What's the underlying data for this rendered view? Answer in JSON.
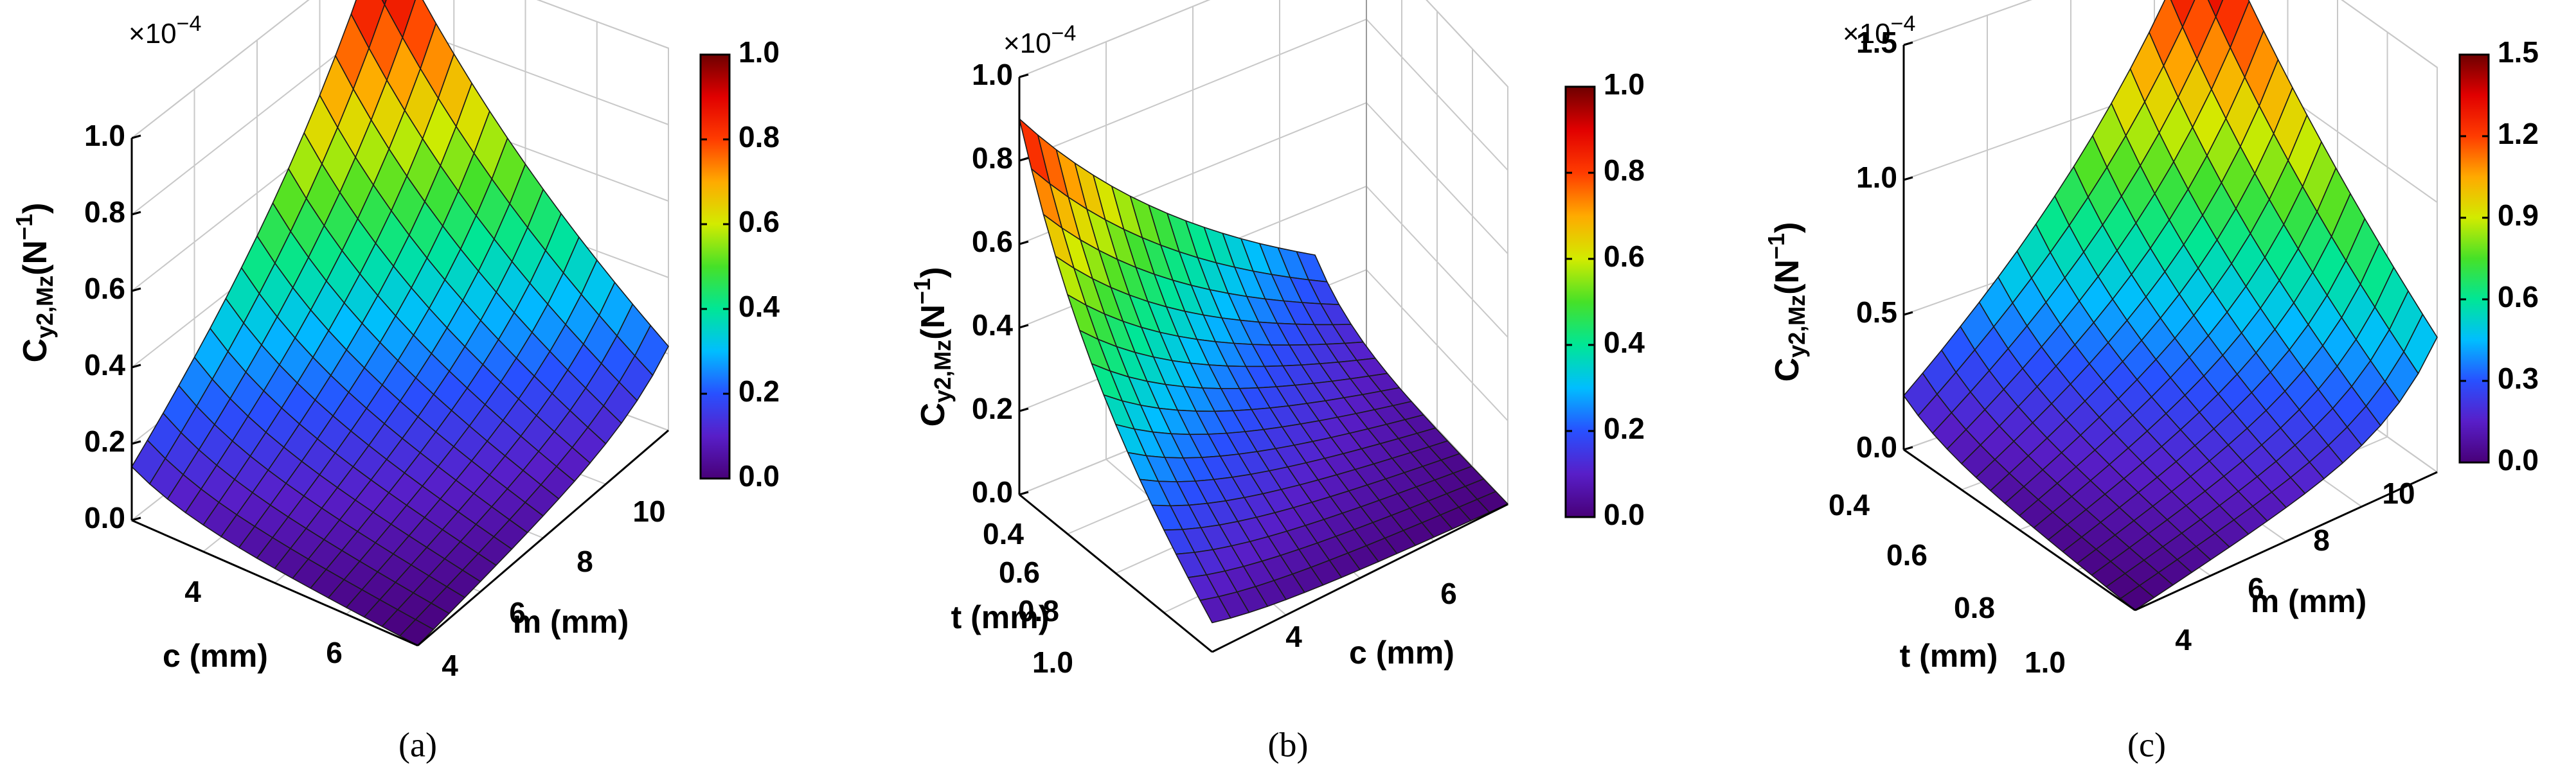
{
  "chart_data": [
    {
      "type": "surface3d",
      "caption": "(a)",
      "multiplier": "×10",
      "multiplier_exp": "−4",
      "zlabel_main": "C",
      "zlabel_sub": "y2,Mz",
      "zlabel_unit": "(N",
      "zlabel_unit_exp": "−1",
      "zlabel_close": ")",
      "z_ticks": [
        "0.0",
        "0.2",
        "0.4",
        "0.6",
        "0.8",
        "1.0"
      ],
      "axis1": {
        "label": "c (mm)",
        "ticks": [
          "4",
          "6"
        ]
      },
      "axis2": {
        "label": "m (mm)",
        "ticks": [
          "4",
          "6",
          "8",
          "10"
        ]
      },
      "colorbar": {
        "ticks": [
          "0.0",
          "0.2",
          "0.4",
          "0.6",
          "0.8",
          "1.0"
        ],
        "range": [
          0,
          1.0
        ]
      },
      "surface_corners": {
        "near": 0.0,
        "left": 0.14,
        "right": 0.22,
        "back": 1.0
      },
      "z_range": [
        0,
        1.0
      ]
    },
    {
      "type": "surface3d",
      "caption": "(b)",
      "multiplier": "×10",
      "multiplier_exp": "−4",
      "zlabel_main": "C",
      "zlabel_sub": "y2,Mz",
      "zlabel_unit": "(N",
      "zlabel_unit_exp": "−1",
      "zlabel_close": ")",
      "z_ticks": [
        "0.0",
        "0.2",
        "0.4",
        "0.6",
        "0.8",
        "1.0"
      ],
      "axis1": {
        "label": "t (mm)",
        "ticks": [
          "0.4",
          "0.6",
          "0.8",
          "1.0"
        ]
      },
      "axis2": {
        "label": "c (mm)",
        "ticks": [
          "4",
          "6"
        ]
      },
      "colorbar": {
        "ticks": [
          "0.0",
          "0.2",
          "0.4",
          "0.6",
          "0.8",
          "1.0"
        ],
        "range": [
          0,
          1.0
        ]
      },
      "surface_corners": {
        "near": 0.07,
        "left": 0.9,
        "right": 0.0,
        "back": 0.22
      },
      "z_range": [
        0,
        1.0
      ]
    },
    {
      "type": "surface3d",
      "caption": "(c)",
      "multiplier": "×10",
      "multiplier_exp": "−4",
      "zlabel_main": "C",
      "zlabel_sub": "y2,Mz",
      "zlabel_unit": "(N",
      "zlabel_unit_exp": "−1",
      "zlabel_close": ")",
      "z_ticks": [
        "0.0",
        "0.5",
        "1.0",
        "1.5"
      ],
      "axis1": {
        "label": "t (mm)",
        "ticks": [
          "0.4",
          "0.6",
          "0.8",
          "1.0"
        ]
      },
      "axis2": {
        "label": "m (mm)",
        "ticks": [
          "4",
          "6",
          "8",
          "10"
        ]
      },
      "colorbar": {
        "ticks": [
          "0.0",
          "0.3",
          "0.6",
          "0.9",
          "1.2",
          "1.5"
        ],
        "range": [
          0,
          1.5
        ]
      },
      "surface_corners": {
        "near": 0.0,
        "left": 0.2,
        "right": 0.5,
        "back": 1.5
      },
      "z_range": [
        0,
        1.5
      ]
    }
  ]
}
